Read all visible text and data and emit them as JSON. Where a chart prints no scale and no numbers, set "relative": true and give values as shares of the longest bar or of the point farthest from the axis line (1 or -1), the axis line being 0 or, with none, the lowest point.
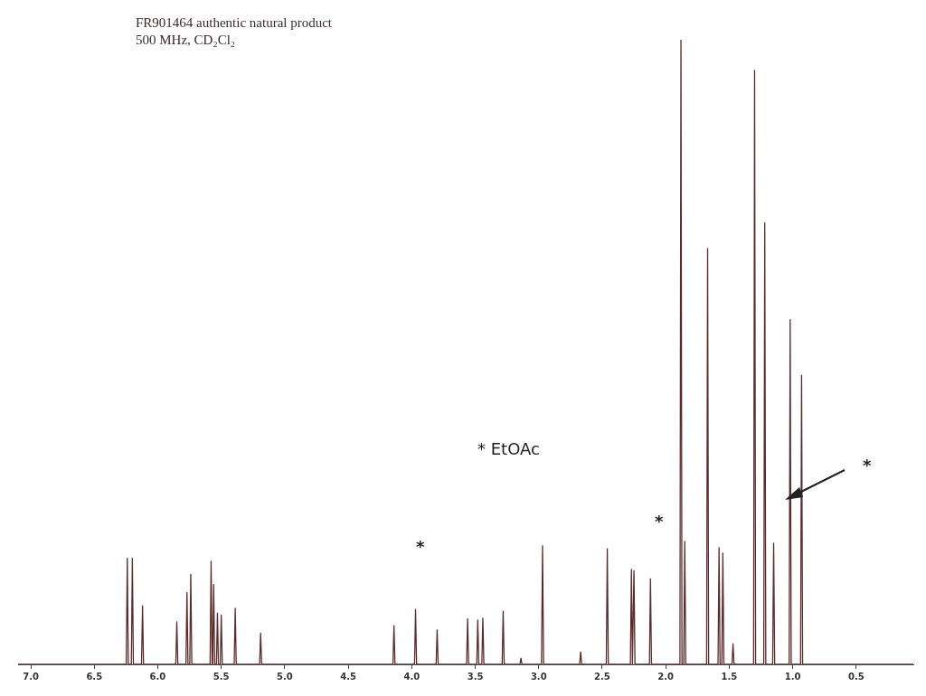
{
  "chart_data": {
    "type": "line",
    "title": "FR901464  authentic natural product",
    "subtitle": "500 MHz, CD₂Cl₂",
    "relative": true,
    "grid": false,
    "legend": false,
    "tick_labels": "x",
    "xlim": [
      7.1,
      0.05
    ],
    "xticks": [
      {
        "value": 7,
        "label": "7.0"
      },
      {
        "value": 6.5,
        "label": "6.5"
      },
      {
        "value": 6,
        "label": "6.0"
      },
      {
        "value": 5.5,
        "label": "5.5"
      },
      {
        "value": 5,
        "label": "5.0"
      },
      {
        "value": 4.5,
        "label": "4.5"
      },
      {
        "value": 4,
        "label": "4.0"
      },
      {
        "value": 3.5,
        "label": "3.5"
      },
      {
        "value": 3,
        "label": "3.0"
      },
      {
        "value": 2.5,
        "label": "2.5"
      },
      {
        "value": 2,
        "label": "2.0"
      },
      {
        "value": 1.5,
        "label": "1.5"
      },
      {
        "value": 1,
        "label": "1.0"
      },
      {
        "value": 0.5,
        "label": "0.5"
      }
    ],
    "annotations": [
      "* EtOAc",
      "*",
      "*",
      "*"
    ],
    "series": [
      {
        "color": "#5b2b2b",
        "x": [
          7.1,
          6.248,
          6.24,
          6.232,
          6.208,
          6.2,
          6.192,
          6.128,
          6.12,
          6.112,
          5.858,
          5.85,
          5.842,
          5.778,
          5.77,
          5.762,
          5.748,
          5.74,
          5.732,
          5.588,
          5.58,
          5.572,
          5.568,
          5.56,
          5.552,
          5.538,
          5.53,
          5.522,
          5.508,
          5.5,
          5.492,
          5.398,
          5.39,
          5.382,
          5.198,
          5.19,
          5.182,
          4.148,
          4.14,
          4.132,
          3.978,
          3.97,
          3.962,
          3.808,
          3.8,
          3.792,
          3.568,
          3.56,
          3.552,
          3.488,
          3.48,
          3.472,
          3.448,
          3.44,
          3.432,
          3.288,
          3.28,
          3.272,
          3.148,
          3.14,
          3.132,
          2.978,
          2.97,
          2.962,
          2.678,
          2.67,
          2.662,
          2.468,
          2.46,
          2.452,
          2.278,
          2.27,
          2.262,
          2.258,
          2.25,
          2.242,
          2.128,
          2.12,
          2.112,
          1.888,
          1.88,
          1.872,
          1.858,
          1.85,
          1.842,
          1.678,
          1.67,
          1.662,
          1.588,
          1.58,
          1.572,
          1.558,
          1.55,
          1.542,
          1.478,
          1.47,
          1.462,
          1.308,
          1.3,
          1.292,
          1.228,
          1.22,
          1.212,
          1.158,
          1.15,
          1.142,
          1.028,
          1.02,
          1.012,
          0.938,
          0.93,
          0.922,
          0.05
        ],
        "values": [
          0,
          0,
          0.17,
          0,
          0,
          0.17,
          0,
          0,
          0.094,
          0,
          0,
          0.068,
          0,
          0,
          0.115,
          0,
          0,
          0.144,
          0,
          0,
          0.165,
          0,
          0,
          0.128,
          0,
          0,
          0.082,
          0,
          0,
          0.079,
          0,
          0,
          0.09,
          0,
          0,
          0.05,
          0,
          0,
          0.062,
          0,
          0,
          0.088,
          0,
          0,
          0.055,
          0,
          0,
          0.073,
          0,
          0,
          0.071,
          0,
          0,
          0.074,
          0,
          0,
          0.085,
          0,
          0,
          0.01,
          0,
          0,
          0.19,
          0,
          0,
          0.02,
          0,
          0,
          0.185,
          0,
          0,
          0.152,
          0,
          0,
          0.15,
          0,
          0,
          0.137,
          0,
          0,
          1,
          0,
          0,
          0.197,
          0,
          0,
          0.666,
          0,
          0,
          0.187,
          0,
          0,
          0.178,
          0,
          0,
          0.033,
          0,
          0,
          0.951,
          0,
          0,
          0.707,
          0,
          0,
          0.194,
          0,
          0,
          0.552,
          0,
          0,
          0.463,
          0,
          0
        ]
      }
    ]
  }
}
